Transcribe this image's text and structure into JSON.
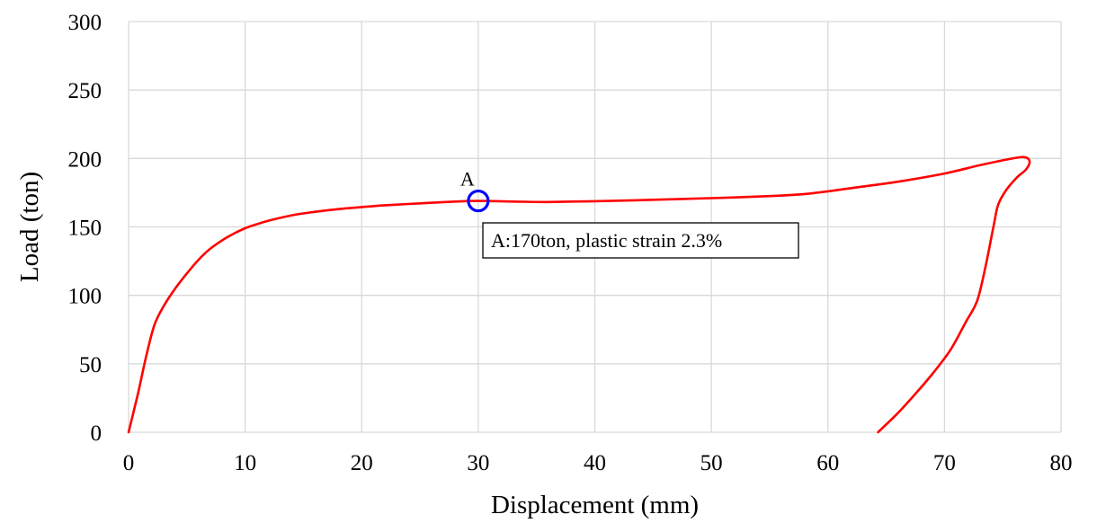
{
  "chart_data": {
    "type": "line",
    "xlabel": "Displacement (mm)",
    "ylabel": "Load (ton)",
    "xlim": [
      0,
      80
    ],
    "ylim": [
      0,
      300
    ],
    "xticks": [
      0,
      10,
      20,
      30,
      40,
      50,
      60,
      70,
      80
    ],
    "yticks": [
      0,
      50,
      100,
      150,
      200,
      250,
      300
    ],
    "grid": true,
    "series": [
      {
        "color": "#ff0000",
        "x": [
          0,
          0.8,
          1.5,
          2.2,
          3,
          4,
          5,
          6,
          7,
          8,
          9,
          10,
          11,
          12,
          14,
          16,
          18,
          20,
          22,
          25,
          28,
          30,
          33,
          36,
          40,
          45,
          50,
          55,
          58,
          60,
          63,
          66,
          70,
          73,
          75.5,
          76.8,
          77.3,
          77,
          76.2,
          75.3,
          74.6,
          74.2,
          73.5,
          72.8,
          71.8,
          70.5,
          69,
          67.5,
          66,
          64.3
        ],
        "y": [
          0,
          28,
          55,
          78,
          92,
          105,
          116,
          126,
          134,
          140,
          145,
          149,
          152,
          154.5,
          158.5,
          161,
          163,
          164.5,
          165.8,
          167.2,
          168.5,
          169,
          168.5,
          168.2,
          168.8,
          169.8,
          171,
          172.5,
          174,
          176,
          179.5,
          183,
          189,
          195,
          199.5,
          201,
          198,
          192,
          186,
          177,
          166,
          150,
          120,
          96,
          80,
          60,
          43,
          28,
          14,
          0
        ]
      }
    ],
    "annotations": [
      {
        "label": "A",
        "x": 30,
        "y": 169,
        "text": "A:170ton, plastic strain 2.3%",
        "marker_color": "#0000ff"
      }
    ]
  }
}
